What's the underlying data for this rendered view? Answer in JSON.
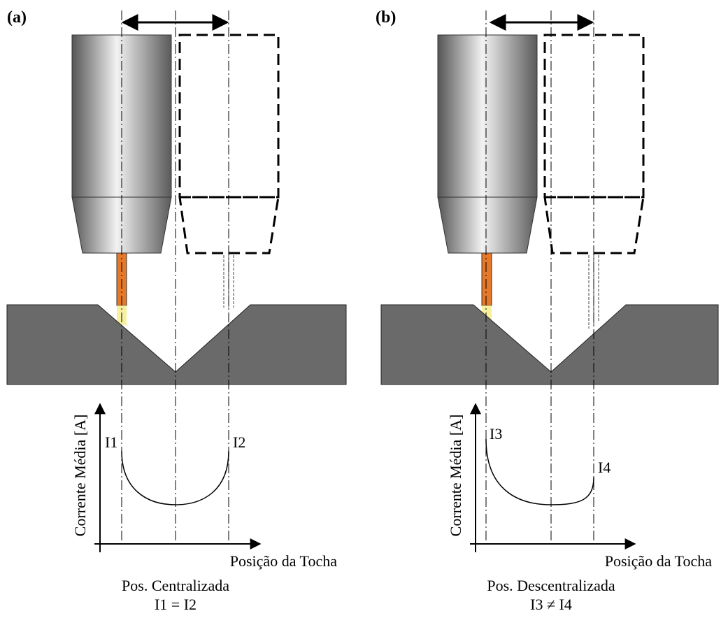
{
  "panels": [
    {
      "label": "(a)",
      "y_axis": "Corrente Média [A]",
      "x_axis": "Posição da Tocha",
      "left_label": "I1",
      "right_label": "I2",
      "caption": "Pos. Centralizada",
      "equation": "I1 = I2"
    },
    {
      "label": "(b)",
      "y_axis": "Corrente Média [A]",
      "x_axis": "Posição da Tocha",
      "left_label": "I3",
      "right_label": "I4",
      "caption": "Pos. Descentralizada",
      "equation": "I3 ≠ I4"
    }
  ]
}
